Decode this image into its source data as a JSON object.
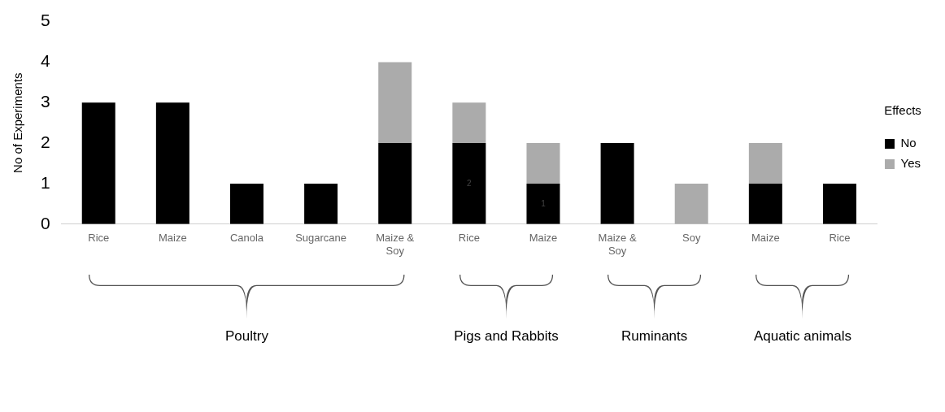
{
  "chart_data": {
    "type": "bar",
    "stacked": true,
    "ylabel": "No of Experiments",
    "legend_title": "Effects",
    "legend": "right",
    "categories": [
      "Rice",
      "Maize",
      "Canola",
      "Sugarcane",
      "Maize & Soy",
      "Rice",
      "Maize",
      "Maize & Soy",
      "Soy",
      "Maize",
      "Rice"
    ],
    "series": [
      {
        "name": "No",
        "color": "#000000",
        "values": [
          3,
          3,
          1,
          1,
          2,
          2,
          1,
          2,
          0,
          1,
          1
        ],
        "value_labels": [
          null,
          null,
          null,
          null,
          null,
          "2",
          "1",
          null,
          null,
          null,
          null
        ]
      },
      {
        "name": "Yes",
        "color": "#ababab",
        "values": [
          0,
          0,
          0,
          0,
          2,
          1,
          1,
          0,
          1,
          1,
          0
        ]
      }
    ],
    "ylim": [
      0,
      5
    ],
    "yticks": [
      0,
      1,
      2,
      3,
      4,
      5
    ],
    "grid": false,
    "annotations": [
      "Poultry",
      "Pigs and Rabbits",
      "Ruminants",
      "Aquatic animals"
    ]
  }
}
